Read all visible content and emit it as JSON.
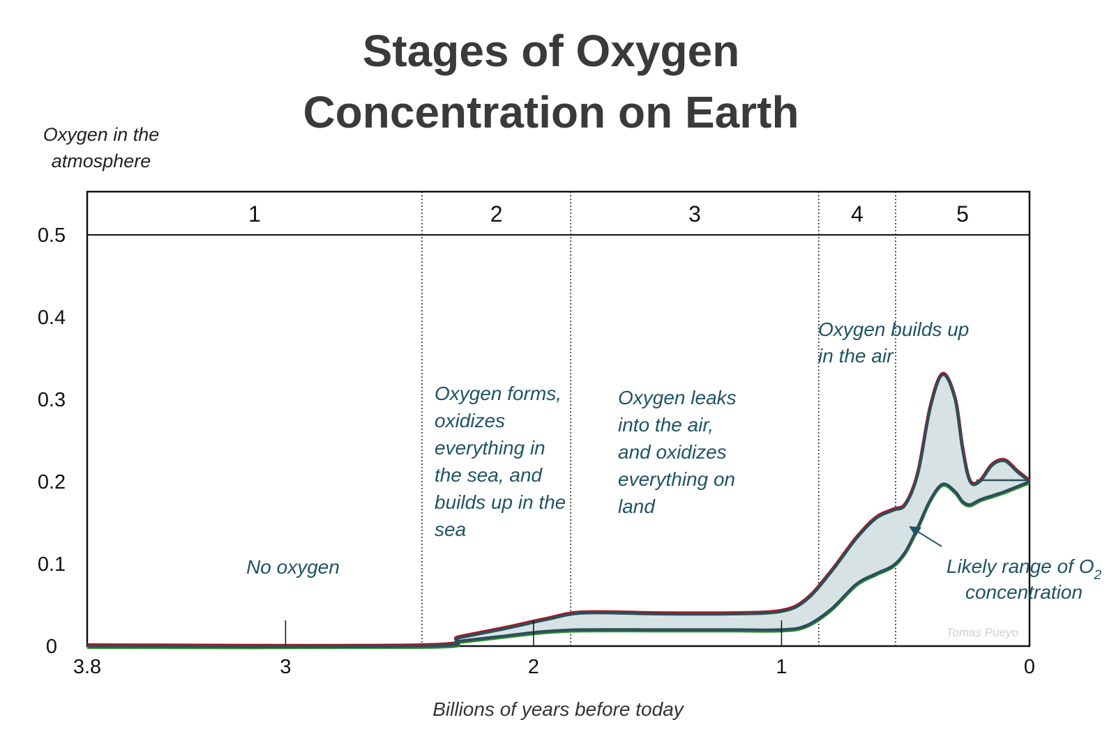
{
  "chart_data": {
    "type": "area",
    "title_lines": [
      "Stages of Oxygen",
      "Concentration on Earth"
    ],
    "ylabel_lines": [
      "Oxygen in the",
      "atmosphere"
    ],
    "xlabel": "Billions of years before today",
    "credit": "Tomas Pueyo",
    "xlim": [
      3.8,
      0
    ],
    "ylim": [
      0,
      0.5
    ],
    "x_ticks": [
      {
        "value": 3.8,
        "label": "3.8"
      },
      {
        "value": 3,
        "label": "3"
      },
      {
        "value": 2,
        "label": "2"
      },
      {
        "value": 1,
        "label": "1"
      },
      {
        "value": 0,
        "label": "0"
      }
    ],
    "y_ticks": [
      {
        "value": 0,
        "label": "0"
      },
      {
        "value": 0.1,
        "label": "0.1"
      },
      {
        "value": 0.2,
        "label": "0.2"
      },
      {
        "value": 0.3,
        "label": "0.3"
      },
      {
        "value": 0.4,
        "label": "0.4"
      },
      {
        "value": 0.5,
        "label": "0.5"
      }
    ],
    "stages": [
      {
        "label": "1",
        "from": 3.8,
        "to": 2.45
      },
      {
        "label": "2",
        "from": 2.45,
        "to": 1.85
      },
      {
        "label": "3",
        "from": 1.85,
        "to": 0.85
      },
      {
        "label": "4",
        "from": 0.85,
        "to": 0.54
      },
      {
        "label": "5",
        "from": 0.54,
        "to": 0
      }
    ],
    "upper_bound": {
      "x": [
        3.8,
        2.45,
        2.3,
        2.1,
        1.95,
        1.8,
        1.5,
        1.2,
        1.0,
        0.9,
        0.8,
        0.7,
        0.62,
        0.55,
        0.5,
        0.45,
        0.4,
        0.35,
        0.3,
        0.27,
        0.24,
        0.2,
        0.15,
        0.1,
        0.05,
        0.0
      ],
      "y": [
        0.0,
        0.0,
        0.01,
        0.022,
        0.032,
        0.04,
        0.039,
        0.039,
        0.042,
        0.056,
        0.09,
        0.13,
        0.155,
        0.165,
        0.172,
        0.21,
        0.29,
        0.33,
        0.3,
        0.24,
        0.2,
        0.2,
        0.22,
        0.225,
        0.212,
        0.2
      ]
    },
    "lower_bound": {
      "x": [
        3.8,
        2.45,
        2.3,
        2.1,
        1.95,
        1.8,
        1.5,
        1.2,
        1.0,
        0.9,
        0.8,
        0.7,
        0.62,
        0.55,
        0.5,
        0.45,
        0.4,
        0.35,
        0.3,
        0.27,
        0.24,
        0.2,
        0.15,
        0.1,
        0.05,
        0.0
      ],
      "y": [
        0.0,
        0.0,
        0.006,
        0.013,
        0.018,
        0.02,
        0.02,
        0.02,
        0.02,
        0.025,
        0.045,
        0.075,
        0.088,
        0.098,
        0.115,
        0.145,
        0.178,
        0.197,
        0.188,
        0.176,
        0.172,
        0.178,
        0.183,
        0.188,
        0.194,
        0.2
      ]
    },
    "annotations": [
      {
        "id": "stage1",
        "lines": [
          "No oxygen"
        ]
      },
      {
        "id": "stage2",
        "lines": [
          "Oxygen forms,",
          "oxidizes",
          "everything in",
          "the sea, and",
          "builds up in the",
          "sea"
        ]
      },
      {
        "id": "stage3",
        "lines": [
          "Oxygen leaks",
          "into the air,",
          "and oxidizes",
          "everything on",
          "land"
        ]
      },
      {
        "id": "stage4",
        "lines": [
          "Oxygen builds up",
          "in the air"
        ]
      },
      {
        "id": "range",
        "lines": [
          "Likely range of O",
          "concentration"
        ],
        "subscript": "2"
      }
    ],
    "colors": {
      "band_fill": "#d6e2e4",
      "band_outline": "#2c4f59",
      "upper_edge": "#b0121b",
      "lower_edge": "#2a8c2e",
      "annotation": "#1f5366"
    },
    "grid": false
  }
}
